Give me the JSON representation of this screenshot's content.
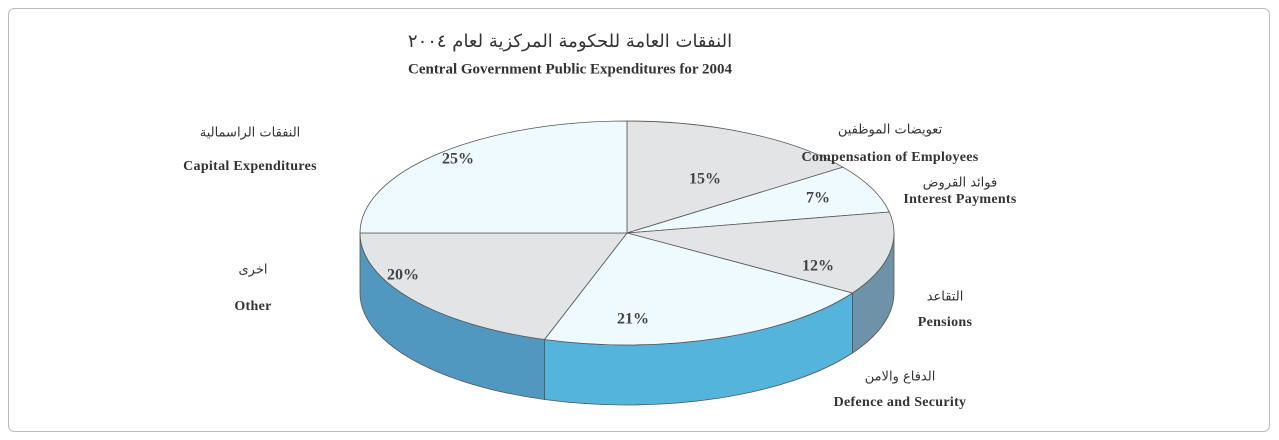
{
  "chart_data": {
    "type": "pie",
    "title": "النفقات العامة للحكومة المركزية لعام ٢٠٠٤",
    "subtitle": "Central Government Public Expenditures for  2004",
    "categories": [
      "Compensation of Employees",
      "Interest Payments",
      "Pensions",
      "Defence and Security",
      "Other",
      "Capital Expenditures"
    ],
    "categories_ar": [
      "تعويضات الموظفين",
      "فوائد القروض",
      "التقاعد",
      "الدفاع والامن",
      "اخرى",
      "النفقات الراسمالية"
    ],
    "values": [
      15,
      7,
      12,
      21,
      20,
      25
    ],
    "value_labels": [
      "15%",
      "7%",
      "12%",
      "21%",
      "20%",
      "25%"
    ],
    "colors": [
      "#e3e4e6",
      "#eefaff",
      "#e3e4e6",
      "#eefaff",
      "#e3e4e6",
      "#eefaff"
    ]
  }
}
